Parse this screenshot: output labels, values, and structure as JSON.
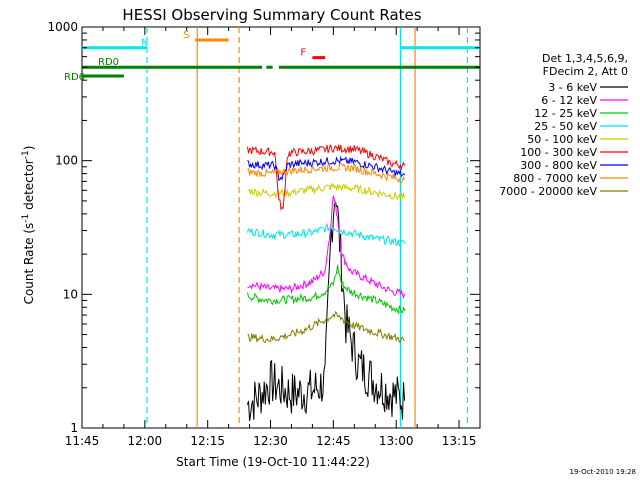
{
  "chart_data": {
    "type": "line",
    "title": "HESSI Observing Summary Count Rates",
    "xlabel": "Start Time (19-Oct-10 11:44:22)",
    "ylabel_main": "Count Rate (s",
    "ylabel_sup1": "-1",
    "ylabel_mid": " detector",
    "ylabel_sup2": "-1",
    "ylabel_end": ")",
    "yscale": "log",
    "ylim": [
      1,
      1000
    ],
    "xlim_minutes": [
      0,
      95
    ],
    "x_ticks": [
      {
        "label": "11:45",
        "min": 0
      },
      {
        "label": "12:00",
        "min": 15
      },
      {
        "label": "12:15",
        "min": 30
      },
      {
        "label": "12:30",
        "min": 45
      },
      {
        "label": "12:45",
        "min": 60
      },
      {
        "label": "13:00",
        "min": 75
      },
      {
        "label": "13:15",
        "min": 90
      }
    ],
    "y_ticks": [
      {
        "label": "1",
        "value": 1
      },
      {
        "label": "10",
        "value": 10
      },
      {
        "label": "100",
        "value": 100
      },
      {
        "label": "1000",
        "value": 1000
      }
    ],
    "legend_header": [
      "Det 1,3,4,5,6,9,",
      "FDecim 2, Att 0"
    ],
    "series": [
      {
        "name": "3 - 6 keV",
        "color": "#000000",
        "points": [
          [
            39.5,
            1.5
          ],
          [
            42,
            1.7
          ],
          [
            45,
            2.2
          ],
          [
            50,
            1.8
          ],
          [
            55,
            1.9
          ],
          [
            58,
            2.2
          ],
          [
            59.5,
            30
          ],
          [
            60.5,
            62
          ],
          [
            61.5,
            25
          ],
          [
            63,
            6
          ],
          [
            66,
            3
          ],
          [
            70,
            2.2
          ],
          [
            74,
            1.8
          ],
          [
            77,
            1.6
          ]
        ]
      },
      {
        "name": "6 - 12 keV",
        "color": "#ff00ff",
        "points": [
          [
            39.5,
            12
          ],
          [
            42,
            11.5
          ],
          [
            45,
            11
          ],
          [
            50,
            11
          ],
          [
            55,
            12.5
          ],
          [
            58,
            15
          ],
          [
            59,
            26
          ],
          [
            60,
            55
          ],
          [
            61,
            38
          ],
          [
            62,
            20
          ],
          [
            64,
            15
          ],
          [
            70,
            12
          ],
          [
            74,
            10.5
          ],
          [
            77,
            10
          ]
        ]
      },
      {
        "name": "12 - 25 keV",
        "color": "#00c800",
        "points": [
          [
            39.5,
            9.8
          ],
          [
            42,
            9.3
          ],
          [
            45,
            9
          ],
          [
            50,
            9.2
          ],
          [
            55,
            9.5
          ],
          [
            58,
            10.5
          ],
          [
            60,
            12
          ],
          [
            61,
            16
          ],
          [
            62,
            12
          ],
          [
            64,
            10.5
          ],
          [
            70,
            9
          ],
          [
            74,
            8
          ],
          [
            77,
            7.5
          ]
        ]
      },
      {
        "name": "25 - 50 keV",
        "color": "#00e5e5",
        "points": [
          [
            39.5,
            30
          ],
          [
            42,
            29
          ],
          [
            45,
            28
          ],
          [
            50,
            28
          ],
          [
            55,
            29
          ],
          [
            58,
            31
          ],
          [
            60,
            32
          ],
          [
            62,
            30
          ],
          [
            66,
            28
          ],
          [
            70,
            26
          ],
          [
            74,
            25
          ],
          [
            77,
            24
          ]
        ]
      },
      {
        "name": "50 - 100 keV",
        "color": "#cccc00",
        "points": [
          [
            39.5,
            60
          ],
          [
            42,
            58
          ],
          [
            45,
            57
          ],
          [
            50,
            58
          ],
          [
            55,
            61
          ],
          [
            60,
            64
          ],
          [
            65,
            62
          ],
          [
            70,
            58
          ],
          [
            74,
            55
          ],
          [
            77,
            53
          ]
        ]
      },
      {
        "name": "100 - 300 keV",
        "color": "#ff0000",
        "points": [
          [
            39.5,
            120
          ],
          [
            42,
            118
          ],
          [
            45,
            116
          ],
          [
            46,
            116
          ],
          [
            47,
            50
          ],
          [
            48,
            42
          ],
          [
            49,
            110
          ],
          [
            50,
            115
          ],
          [
            55,
            118
          ],
          [
            60,
            124
          ],
          [
            65,
            122
          ],
          [
            70,
            108
          ],
          [
            74,
            95
          ],
          [
            77,
            92
          ]
        ]
      },
      {
        "name": "300 - 800 keV",
        "color": "#0000ff",
        "points": [
          [
            39.5,
            95
          ],
          [
            42,
            93
          ],
          [
            45,
            92
          ],
          [
            46,
            92
          ],
          [
            47,
            75
          ],
          [
            48,
            75
          ],
          [
            49,
            92
          ],
          [
            50,
            94
          ],
          [
            55,
            97
          ],
          [
            60,
            100
          ],
          [
            65,
            98
          ],
          [
            70,
            90
          ],
          [
            74,
            82
          ],
          [
            77,
            78
          ]
        ]
      },
      {
        "name": "800 - 7000 keV",
        "color": "#ff8800",
        "points": [
          [
            39.5,
            82
          ],
          [
            42,
            81
          ],
          [
            45,
            80
          ],
          [
            47,
            82
          ],
          [
            50,
            84
          ],
          [
            55,
            87
          ],
          [
            60,
            89
          ],
          [
            65,
            88
          ],
          [
            70,
            80
          ],
          [
            74,
            75
          ],
          [
            77,
            72
          ]
        ]
      },
      {
        "name": "7000 - 20000 keV",
        "color": "#808000",
        "points": [
          [
            39.5,
            4.8
          ],
          [
            42,
            4.7
          ],
          [
            45,
            4.6
          ],
          [
            50,
            5.0
          ],
          [
            53,
            5.4
          ],
          [
            55,
            5.8
          ],
          [
            57,
            6.2
          ],
          [
            60,
            7.0
          ],
          [
            62,
            6.6
          ],
          [
            65,
            5.8
          ],
          [
            70,
            5.2
          ],
          [
            74,
            4.8
          ],
          [
            77,
            4.5
          ]
        ]
      }
    ],
    "markers": [
      {
        "label": "N",
        "color": "#00e5e5",
        "intervals": [
          [
            -1,
            15.5
          ],
          [
            76,
            95
          ]
        ],
        "level": 700
      },
      {
        "label": "S",
        "color": "#ff8800",
        "intervals": [
          [
            27,
            35
          ]
        ],
        "level": 800
      },
      {
        "label": "RD0",
        "color": "#008000",
        "intervals": [
          [
            -1,
            43
          ],
          [
            44,
            45.5
          ],
          [
            47,
            95
          ]
        ],
        "level": 500
      },
      {
        "label": "RD6",
        "color": "#008000",
        "intervals": [
          [
            -1,
            10
          ]
        ],
        "level": 430
      },
      {
        "label": "F",
        "color": "#ff0000",
        "intervals": [
          [
            55,
            58
          ]
        ],
        "level": 590
      }
    ],
    "vlines": [
      {
        "min": 15.5,
        "color": "#00e5e5",
        "dash": true
      },
      {
        "min": 27.5,
        "color": "#ff8800",
        "dash": false
      },
      {
        "min": 37.5,
        "color": "#ff8800",
        "dash": true
      },
      {
        "min": 76,
        "color": "#00e5e5",
        "dash": false
      },
      {
        "min": 79.5,
        "color": "#ff8800",
        "dash": false
      },
      {
        "min": 92,
        "color": "#00e5e5",
        "dash": true
      }
    ]
  },
  "footer_timestamp": "19-Oct-2010 19:28"
}
